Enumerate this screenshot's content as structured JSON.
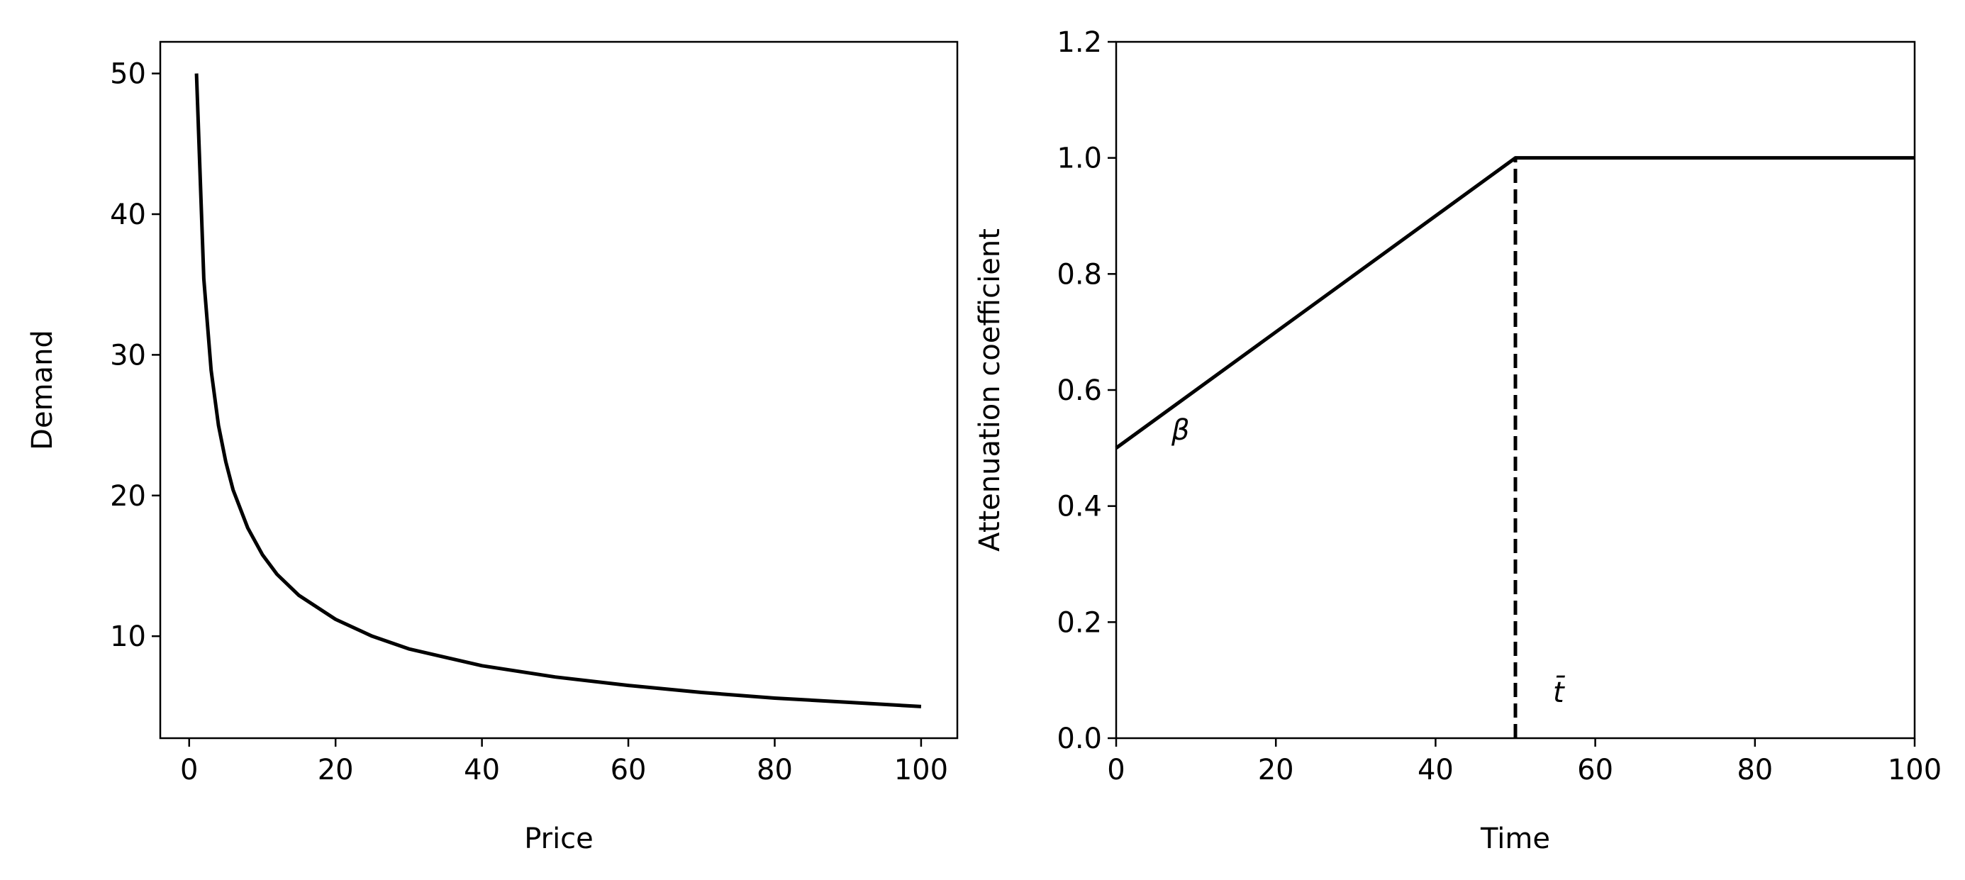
{
  "chart_data": [
    {
      "type": "line",
      "xlabel": "Price",
      "ylabel": "Demand",
      "x": [
        1,
        2,
        3,
        4,
        5,
        6,
        8,
        10,
        12,
        15,
        20,
        25,
        30,
        40,
        50,
        60,
        70,
        80,
        90,
        100
      ],
      "series": [
        {
          "color": "#000000",
          "values": [
            50,
            35.4,
            28.9,
            25,
            22.4,
            20.4,
            17.7,
            15.8,
            14.4,
            12.9,
            11.2,
            10,
            9.1,
            7.9,
            7.1,
            6.5,
            6.0,
            5.6,
            5.3,
            5
          ]
        }
      ],
      "xlim": [
        -3.95,
        104.95
      ],
      "xticks": [
        0,
        20,
        40,
        60,
        80,
        100
      ],
      "ylim": [
        2.75,
        52.25
      ],
      "yticks": [
        10,
        20,
        30,
        40,
        50
      ]
    },
    {
      "type": "line",
      "xlabel": "Time",
      "ylabel": "Attenuation coefficient",
      "x": [
        0,
        50,
        100
      ],
      "series": [
        {
          "color": "#000000",
          "values": [
            0.5,
            1,
            1
          ]
        }
      ],
      "annotations": [
        "β",
        "t̄"
      ],
      "xlim": [
        0,
        100
      ],
      "xticks": [
        0,
        20,
        40,
        60,
        80,
        100
      ],
      "ylim": [
        0,
        1.2
      ],
      "yticks": [
        {
          "value": 0,
          "label": "0.0"
        },
        0.2,
        0.4,
        0.6,
        0.8,
        {
          "value": 1,
          "label": "1.0"
        },
        1.2
      ]
    }
  ]
}
